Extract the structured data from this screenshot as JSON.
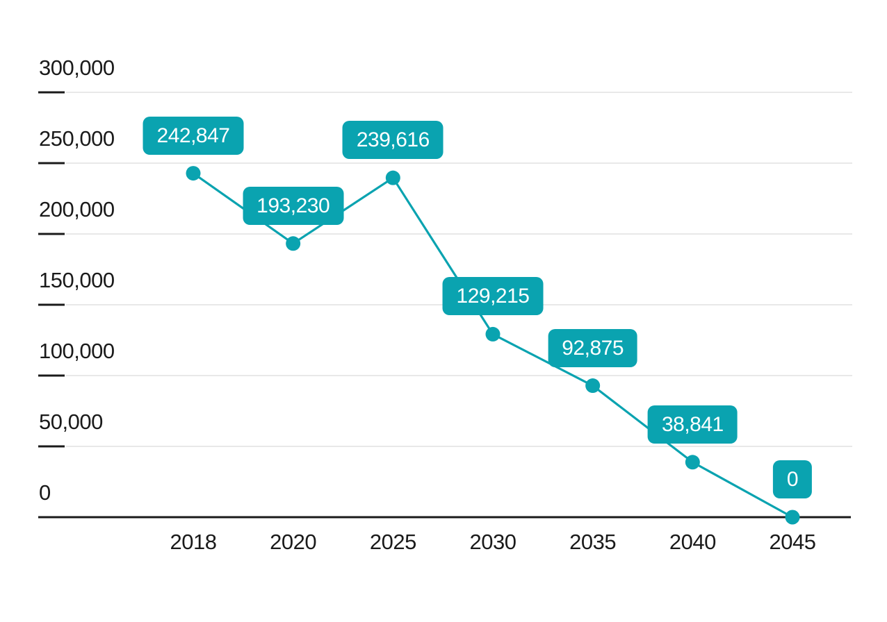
{
  "chart_data": {
    "type": "line",
    "title": "",
    "xlabel": "",
    "ylabel": "",
    "categories": [
      "2018",
      "2020",
      "2025",
      "2030",
      "2035",
      "2040",
      "2045"
    ],
    "values": [
      242847,
      193230,
      239616,
      129215,
      92875,
      38841,
      0
    ],
    "value_labels": [
      "242,847",
      "193,230",
      "239,616",
      "129,215",
      "92,875",
      "38,841",
      "0"
    ],
    "y_ticks": [
      300000,
      250000,
      200000,
      150000,
      100000,
      50000,
      0
    ],
    "y_tick_labels": [
      "300,000",
      "250,000",
      "200,000",
      "150,000",
      "100,000",
      "50,000",
      "0"
    ],
    "ylim": [
      0,
      300000
    ],
    "grid": true,
    "legend_position": "none",
    "series_name": ""
  },
  "colors": {
    "accent": "#0aa3b0",
    "gridline": "#e8e8e8",
    "axis": "#1a1a1a",
    "tick": "#1a1a1a",
    "axis_text": "#1a1a1a",
    "badge_background": "#0aa3b0",
    "badge_text": "#ffffff",
    "background": "#ffffff"
  }
}
